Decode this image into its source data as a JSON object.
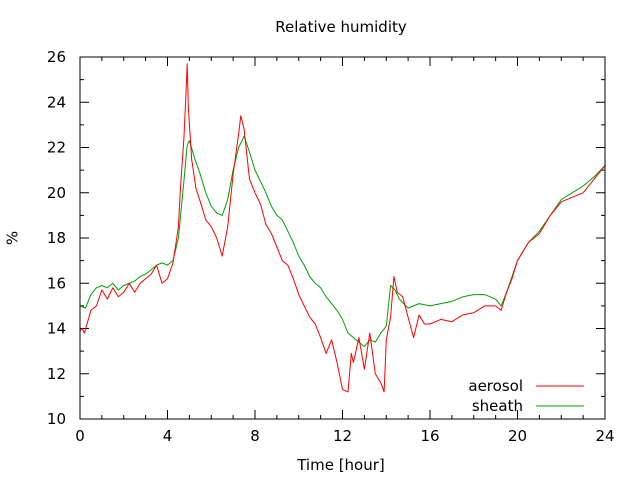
{
  "chart_data": {
    "type": "line",
    "title": "Relative humidity",
    "xlabel": "Time [hour]",
    "ylabel": "%",
    "xlim": [
      0,
      24
    ],
    "ylim": [
      10,
      26
    ],
    "xticks": [
      0,
      4,
      8,
      12,
      16,
      20,
      24
    ],
    "xtick_labels": [
      "0",
      "4",
      "8",
      "12",
      "16",
      "20",
      "24"
    ],
    "yticks": [
      10,
      12,
      14,
      16,
      18,
      20,
      22,
      24,
      26
    ],
    "ytick_labels": [
      "10",
      "12",
      "14",
      "16",
      "18",
      "20",
      "22",
      "24",
      "26"
    ],
    "grid": false,
    "legend_position": "bottom-right",
    "series": [
      {
        "name": "aerosol",
        "color": "#ff0000",
        "x": [
          0,
          0.1,
          0.2,
          0.5,
          0.75,
          1.0,
          1.25,
          1.5,
          1.75,
          2.0,
          2.25,
          2.5,
          2.75,
          3.0,
          3.25,
          3.5,
          3.75,
          4.0,
          4.25,
          4.5,
          4.6,
          4.75,
          4.85,
          4.9,
          4.95,
          5.1,
          5.3,
          5.5,
          5.75,
          6.0,
          6.25,
          6.5,
          6.75,
          7.0,
          7.25,
          7.35,
          7.5,
          7.75,
          8.0,
          8.25,
          8.5,
          8.75,
          9.0,
          9.25,
          9.5,
          9.75,
          10.0,
          10.25,
          10.5,
          10.75,
          11.0,
          11.25,
          11.5,
          11.75,
          12.0,
          12.25,
          12.4,
          12.5,
          12.75,
          13.0,
          13.25,
          13.5,
          13.75,
          13.9,
          14.0,
          14.2,
          14.35,
          14.5,
          14.75,
          15.0,
          15.25,
          15.5,
          15.75,
          16.0,
          16.5,
          17.0,
          17.5,
          18.0,
          18.5,
          19.0,
          19.25,
          19.5,
          19.75,
          20.0,
          20.5,
          21.0,
          21.5,
          22.0,
          22.5,
          23.0,
          23.5,
          24.0
        ],
        "values": [
          13.9,
          14.0,
          13.8,
          14.8,
          15.0,
          15.7,
          15.3,
          15.8,
          15.4,
          15.6,
          16.0,
          15.6,
          16.0,
          16.2,
          16.4,
          16.8,
          16.0,
          16.2,
          16.9,
          18.5,
          20.3,
          22.4,
          24.5,
          25.7,
          23.8,
          21.5,
          20.2,
          19.6,
          18.8,
          18.5,
          18.0,
          17.2,
          18.5,
          20.8,
          22.6,
          23.4,
          22.8,
          20.6,
          20.0,
          19.5,
          18.6,
          18.2,
          17.6,
          17.0,
          16.8,
          16.2,
          15.5,
          15.0,
          14.5,
          14.2,
          13.6,
          12.9,
          13.5,
          12.5,
          11.3,
          11.2,
          12.9,
          12.5,
          13.6,
          12.2,
          13.8,
          12.0,
          11.6,
          11.2,
          13.5,
          14.5,
          16.3,
          15.6,
          15.4,
          14.5,
          13.6,
          14.6,
          14.2,
          14.2,
          14.4,
          14.3,
          14.6,
          14.7,
          15.0,
          15.0,
          14.8,
          15.6,
          16.2,
          17.0,
          17.8,
          18.2,
          19.0,
          19.6,
          19.8,
          20.0,
          20.6,
          21.2
        ]
      },
      {
        "name": "sheath",
        "color": "#00a000",
        "x": [
          0,
          0.25,
          0.5,
          0.75,
          1.0,
          1.25,
          1.5,
          1.75,
          2.0,
          2.25,
          2.5,
          2.75,
          3.0,
          3.25,
          3.5,
          3.75,
          4.0,
          4.25,
          4.5,
          4.75,
          4.9,
          5.0,
          5.25,
          5.5,
          5.75,
          6.0,
          6.25,
          6.5,
          6.75,
          7.0,
          7.25,
          7.5,
          7.75,
          8.0,
          8.25,
          8.5,
          8.75,
          9.0,
          9.25,
          9.5,
          9.75,
          10.0,
          10.25,
          10.5,
          10.75,
          11.0,
          11.25,
          11.5,
          11.75,
          12.0,
          12.25,
          12.5,
          12.75,
          13.0,
          13.25,
          13.5,
          13.75,
          14.0,
          14.2,
          14.4,
          14.6,
          15.0,
          15.5,
          16.0,
          16.5,
          17.0,
          17.5,
          18.0,
          18.5,
          19.0,
          19.25,
          19.5,
          19.75,
          20.0,
          20.5,
          21.0,
          21.5,
          22.0,
          22.5,
          23.0,
          23.5,
          24.0
        ],
        "values": [
          15.0,
          14.9,
          15.5,
          15.8,
          15.9,
          15.8,
          16.0,
          15.7,
          15.9,
          16.0,
          16.1,
          16.3,
          16.4,
          16.6,
          16.8,
          16.9,
          16.8,
          17.0,
          18.0,
          20.5,
          22.1,
          22.3,
          21.5,
          20.8,
          20.0,
          19.4,
          19.1,
          19.0,
          19.7,
          21.0,
          22.0,
          22.5,
          21.8,
          21.0,
          20.5,
          20.0,
          19.4,
          19.0,
          18.8,
          18.3,
          17.8,
          17.2,
          16.8,
          16.3,
          16.0,
          15.8,
          15.4,
          15.1,
          14.8,
          14.4,
          13.8,
          13.6,
          13.4,
          13.2,
          13.5,
          13.4,
          13.8,
          14.1,
          15.9,
          15.7,
          15.3,
          14.9,
          15.1,
          15.0,
          15.1,
          15.2,
          15.4,
          15.5,
          15.5,
          15.3,
          15.0,
          15.6,
          16.3,
          17.0,
          17.8,
          18.3,
          19.0,
          19.7,
          20.0,
          20.3,
          20.7,
          21.2
        ]
      }
    ]
  }
}
